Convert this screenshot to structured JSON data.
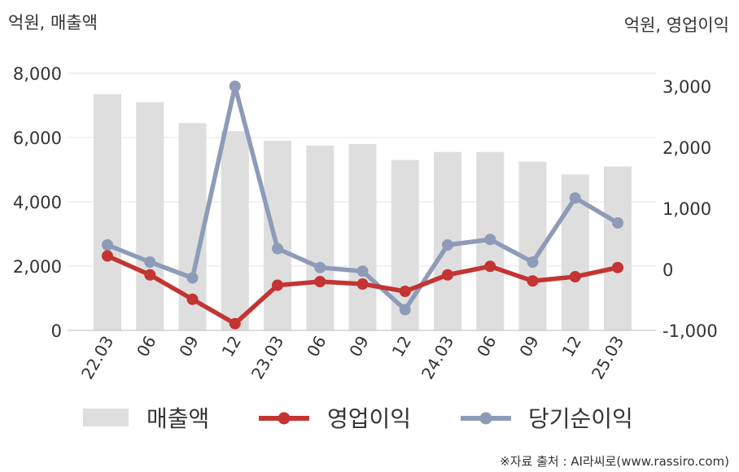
{
  "chart_data": {
    "type": "bar",
    "categories": [
      "22.03",
      "06",
      "09",
      "12",
      "23.03",
      "06",
      "09",
      "12",
      "24.03",
      "06",
      "09",
      "12",
      "25.03"
    ],
    "left_unit": "억원, 매출액",
    "right_unit": "억원, 영업이익",
    "left_axis": {
      "ylim": [
        0,
        8000
      ],
      "ticks": [
        "0",
        "2,000",
        "4,000",
        "6,000",
        "8,000"
      ]
    },
    "right_axis": {
      "ylim": [
        -1000,
        3000
      ],
      "ticks": [
        "-1,000",
        "0",
        "1,000",
        "2,000",
        "3,000"
      ]
    },
    "series": [
      {
        "name": "매출액",
        "type": "bar",
        "axis": "left",
        "color": "#dedede",
        "values": [
          7350,
          7100,
          6450,
          6200,
          5900,
          5750,
          5800,
          5300,
          5550,
          5550,
          5250,
          4850,
          5100
        ]
      },
      {
        "name": "영업이익",
        "type": "line",
        "axis": "right",
        "color": "#c33432",
        "values": [
          220,
          -90,
          -490,
          -890,
          -260,
          -200,
          -240,
          -360,
          -90,
          50,
          -190,
          -120,
          30
        ]
      },
      {
        "name": "당기순이익",
        "type": "line",
        "axis": "right",
        "color": "#8e9bb8",
        "values": [
          400,
          120,
          -140,
          3000,
          340,
          30,
          -30,
          -660,
          400,
          490,
          120,
          1170,
          760
        ]
      }
    ],
    "grid": true,
    "legend_position": "bottom"
  },
  "source_text": "※자료 출처 : AI라씨로(www.rassiro.com)"
}
